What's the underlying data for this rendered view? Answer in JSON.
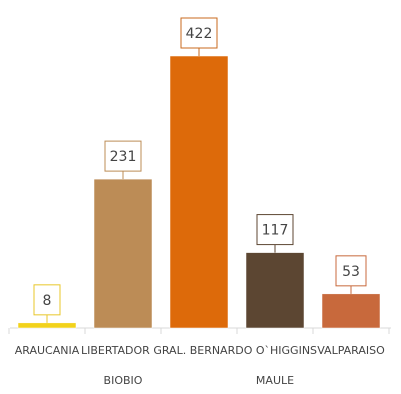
{
  "chart_data": {
    "type": "bar",
    "categories": [
      "ARAUCANIA",
      "BIOBIO",
      "LIBERTADOR GRAL. BERNARDO O`HIGGINS",
      "MAULE",
      "VALPARAISO"
    ],
    "values": [
      8,
      231,
      422,
      117,
      53
    ],
    "data_labels": [
      "8",
      "231",
      "422",
      "117",
      "53"
    ],
    "ylim": [
      0,
      422
    ],
    "grid": false,
    "legend": "none",
    "colors": [
      "#F2D21B",
      "#BC8C56",
      "#DD6A0A",
      "#5C4632",
      "#C8693C"
    ],
    "label_border_colors": [
      "#E8C72A",
      "#BC8C56",
      "#C96A1C",
      "#5C4632",
      "#C8693C"
    ],
    "axis_color": "#D9D9D9",
    "label_text_color": "#444444"
  }
}
